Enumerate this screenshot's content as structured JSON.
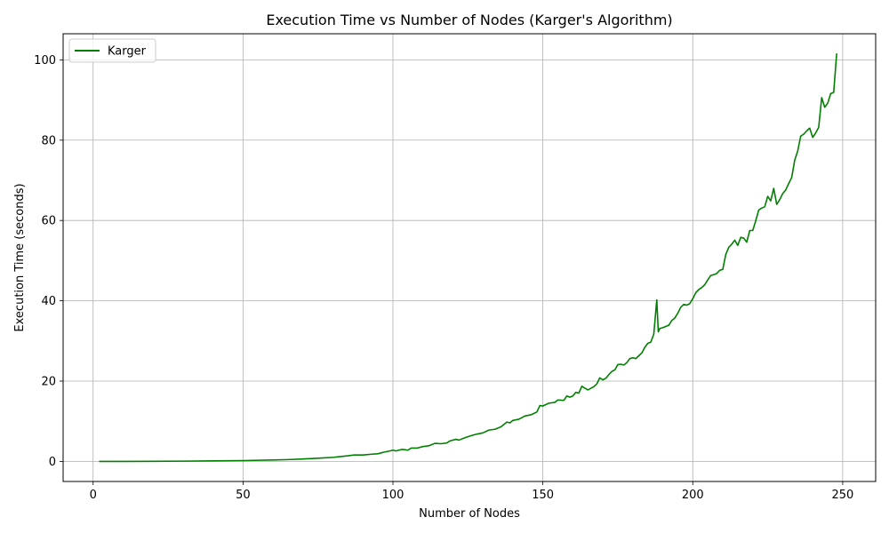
{
  "chart_data": {
    "type": "line",
    "title": "Execution Time vs Number of Nodes (Karger's Algorithm)",
    "xlabel": "Number of Nodes",
    "ylabel": "Execution Time (seconds)",
    "xlim": [
      -10,
      261
    ],
    "ylim": [
      -5,
      106.5
    ],
    "xticks": [
      0,
      50,
      100,
      150,
      200,
      250
    ],
    "yticks": [
      0,
      20,
      40,
      60,
      80,
      100
    ],
    "grid": true,
    "legend_position": "top-left",
    "series": [
      {
        "name": "Karger",
        "color": "#008000",
        "points": [
          [
            2,
            0
          ],
          [
            10,
            0
          ],
          [
            20,
            0.02
          ],
          [
            30,
            0.06
          ],
          [
            40,
            0.12
          ],
          [
            50,
            0.2
          ],
          [
            60,
            0.35
          ],
          [
            65,
            0.45
          ],
          [
            70,
            0.6
          ],
          [
            75,
            0.8
          ],
          [
            80,
            1.0
          ],
          [
            85,
            1.4
          ],
          [
            87,
            1.6
          ],
          [
            90,
            1.6
          ],
          [
            93,
            1.8
          ],
          [
            95,
            1.9
          ],
          [
            97,
            2.3
          ],
          [
            99,
            2.6
          ],
          [
            100,
            2.8
          ],
          [
            101,
            2.6
          ],
          [
            103,
            3.0
          ],
          [
            105,
            2.8
          ],
          [
            106,
            3.3
          ],
          [
            108,
            3.3
          ],
          [
            110,
            3.7
          ],
          [
            112,
            3.9
          ],
          [
            114,
            4.5
          ],
          [
            116,
            4.4
          ],
          [
            118,
            4.6
          ],
          [
            119,
            5.1
          ],
          [
            121,
            5.5
          ],
          [
            122,
            5.3
          ],
          [
            124,
            5.9
          ],
          [
            126,
            6.4
          ],
          [
            128,
            6.8
          ],
          [
            130,
            7.1
          ],
          [
            132,
            7.8
          ],
          [
            134,
            8.0
          ],
          [
            136,
            8.6
          ],
          [
            138,
            9.8
          ],
          [
            139,
            9.6
          ],
          [
            140,
            10.2
          ],
          [
            142,
            10.5
          ],
          [
            144,
            11.3
          ],
          [
            146,
            11.6
          ],
          [
            148,
            12.3
          ],
          [
            149,
            13.9
          ],
          [
            150,
            13.8
          ],
          [
            152,
            14.5
          ],
          [
            154,
            14.7
          ],
          [
            155,
            15.3
          ],
          [
            157,
            15.2
          ],
          [
            158,
            16.3
          ],
          [
            159,
            16.0
          ],
          [
            160,
            16.3
          ],
          [
            161,
            17.2
          ],
          [
            162,
            17.0
          ],
          [
            163,
            18.7
          ],
          [
            165,
            17.8
          ],
          [
            167,
            18.6
          ],
          [
            168,
            19.3
          ],
          [
            169,
            20.8
          ],
          [
            170,
            20.3
          ],
          [
            171,
            20.7
          ],
          [
            172,
            21.6
          ],
          [
            173,
            22.4
          ],
          [
            174,
            22.8
          ],
          [
            175,
            24.1
          ],
          [
            176,
            24.2
          ],
          [
            177,
            24.0
          ],
          [
            178,
            24.6
          ],
          [
            179,
            25.6
          ],
          [
            180,
            25.8
          ],
          [
            181,
            25.6
          ],
          [
            182,
            26.3
          ],
          [
            183,
            27.0
          ],
          [
            184,
            28.4
          ],
          [
            185,
            29.4
          ],
          [
            186,
            29.7
          ],
          [
            187,
            31.7
          ],
          [
            188,
            40.2
          ],
          [
            188.5,
            32.3
          ],
          [
            189,
            33.1
          ],
          [
            190,
            33.3
          ],
          [
            191,
            33.6
          ],
          [
            192,
            33.9
          ],
          [
            193,
            35.1
          ],
          [
            194,
            35.7
          ],
          [
            195,
            36.9
          ],
          [
            196,
            38.4
          ],
          [
            197,
            39.1
          ],
          [
            198,
            38.9
          ],
          [
            199,
            39.3
          ],
          [
            200,
            40.5
          ],
          [
            201,
            42.0
          ],
          [
            202,
            42.8
          ],
          [
            203,
            43.3
          ],
          [
            204,
            44.0
          ],
          [
            205,
            45.2
          ],
          [
            206,
            46.3
          ],
          [
            207,
            46.5
          ],
          [
            208,
            46.8
          ],
          [
            209,
            47.6
          ],
          [
            210,
            47.8
          ],
          [
            211,
            51.5
          ],
          [
            212,
            53.3
          ],
          [
            213,
            54.1
          ],
          [
            214,
            55.1
          ],
          [
            215,
            53.8
          ],
          [
            216,
            55.8
          ],
          [
            217,
            55.6
          ],
          [
            218,
            54.6
          ],
          [
            219,
            57.5
          ],
          [
            220,
            57.5
          ],
          [
            221,
            59.9
          ],
          [
            222,
            62.6
          ],
          [
            223,
            63.1
          ],
          [
            224,
            63.4
          ],
          [
            225,
            66.0
          ],
          [
            226,
            64.9
          ],
          [
            227,
            68.0
          ],
          [
            228,
            64.0
          ],
          [
            229,
            65.2
          ],
          [
            230,
            66.7
          ],
          [
            231,
            67.6
          ],
          [
            232,
            69.2
          ],
          [
            233,
            70.7
          ],
          [
            234,
            75.0
          ],
          [
            235,
            77.3
          ],
          [
            236,
            81.0
          ],
          [
            237,
            81.5
          ],
          [
            238,
            82.3
          ],
          [
            239,
            83.0
          ],
          [
            240,
            80.7
          ],
          [
            241,
            81.8
          ],
          [
            242,
            83.2
          ],
          [
            243,
            90.6
          ],
          [
            244,
            88.2
          ],
          [
            245,
            89.2
          ],
          [
            246,
            91.6
          ],
          [
            247,
            91.9
          ],
          [
            248,
            101.6
          ]
        ]
      }
    ]
  }
}
